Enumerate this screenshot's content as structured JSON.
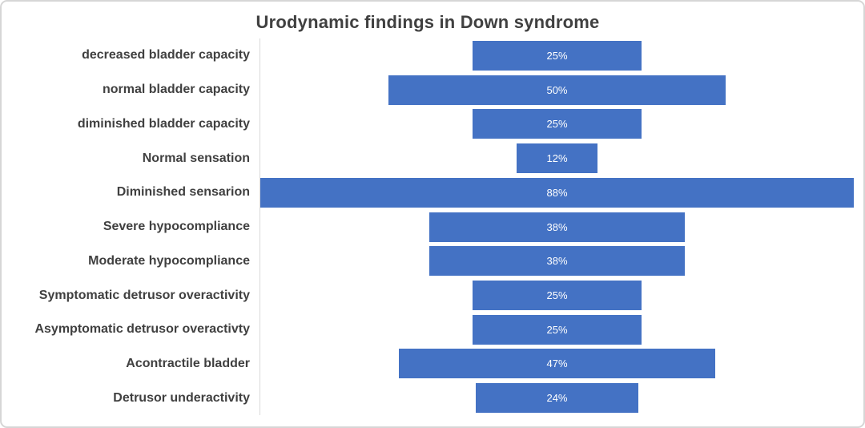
{
  "chart_data": {
    "type": "bar",
    "subtype": "funnel-centered-horizontal",
    "title": "Urodynamic findings in Down syndrome",
    "categories": [
      "decreased bladder capacity",
      "normal bladder capacity",
      "diminished bladder capacity",
      "Normal sensation",
      "Diminished sensarion",
      "Severe hypocompliance",
      "Moderate hypocompliance",
      "Symptomatic detrusor overactivity",
      "Asymptomatic detrusor overactivty",
      "Acontractile bladder",
      "Detrusor underactivity"
    ],
    "values": [
      25,
      50,
      25,
      12,
      88,
      38,
      38,
      25,
      25,
      47,
      24
    ],
    "data_labels": [
      "25%",
      "50%",
      "25%",
      "12%",
      "88%",
      "38%",
      "38%",
      "25%",
      "25%",
      "47%",
      "24%"
    ],
    "unit": "%",
    "axis_max": 88,
    "bar_color": "#4472C4",
    "data_label_color": "#FFFFFF",
    "category_label_color": "#404040",
    "title_color": "#404040",
    "axis_line_color": "#D9D9D9",
    "frame_border_color": "#D6D6D6",
    "grid": false,
    "legend": false,
    "xlabel": "",
    "ylabel": ""
  }
}
